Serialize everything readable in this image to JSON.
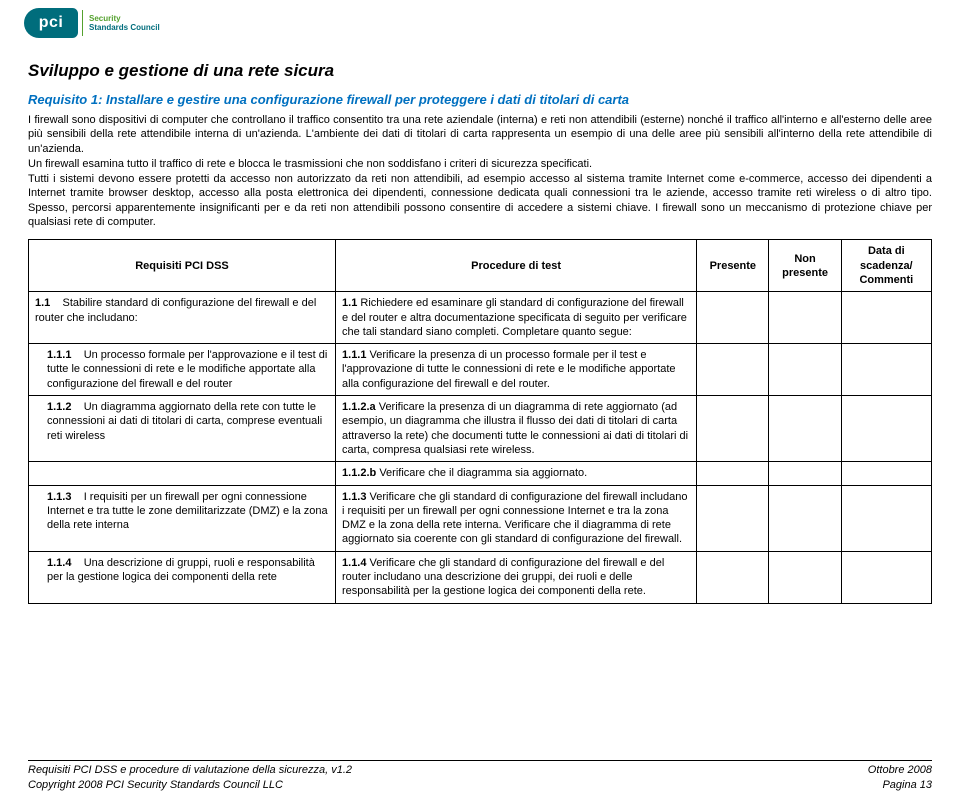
{
  "logo": {
    "abbr": "pci",
    "line1": "Security",
    "line2": "Standards Council"
  },
  "title": "Sviluppo e gestione di una rete sicura",
  "requirement_heading": "Requisito 1: Installare e gestire una configurazione firewall per proteggere i dati di titolari di carta",
  "para1": "I firewall sono dispositivi di computer che controllano il traffico consentito tra una rete aziendale (interna) e reti non attendibili (esterne) nonché il traffico all'interno e all'esterno delle aree più sensibili della rete attendibile interna di un'azienda. L'ambiente dei dati di titolari di carta rappresenta un esempio di una delle aree più sensibili all'interno della rete attendibile di un'azienda.",
  "para2": "Un firewall esamina tutto il traffico di rete e blocca le trasmissioni che non soddisfano i criteri di sicurezza specificati.",
  "para3": "Tutti i sistemi devono essere protetti da accesso non autorizzato da reti non attendibili, ad esempio accesso al sistema tramite Internet come e-commerce, accesso dei dipendenti a Internet tramite browser desktop, accesso alla posta elettronica dei dipendenti, connessione dedicata quali connessioni tra le aziende, accesso tramite reti wireless o di altro tipo. Spesso, percorsi apparentemente insignificanti per e da reti non attendibili possono consentire di accedere a sistemi chiave. I firewall sono un meccanismo di protezione chiave per qualsiasi rete di computer.",
  "table": {
    "headers": {
      "col1": "Requisiti PCI DSS",
      "col2": "Procedure di test",
      "col3": "Presente",
      "col4": "Non presente",
      "col5": "Data di scadenza/ Commenti"
    },
    "rows": [
      {
        "req_num": "1.1",
        "req_text": "Stabilire standard di configurazione del firewall e del router che includano:",
        "proc_num": "1.1",
        "proc_text": "Richiedere ed esaminare gli standard di configurazione del firewall e del router e altra documentazione specificata di seguito per verificare che tali standard siano completi. Completare quanto segue:"
      },
      {
        "req_num": "1.1.1",
        "req_text": "Un processo formale per l'approvazione e il test di tutte le connessioni di rete e le modifiche apportate alla configurazione del firewall e del router",
        "proc_num": "1.1.1",
        "proc_text": "Verificare la presenza di un processo formale per il test e l'approvazione di tutte le connessioni di rete e le modifiche apportate alla configurazione del firewall e del router.",
        "indent": true
      },
      {
        "req_num": "1.1.2",
        "req_text": "Un diagramma aggiornato della rete con tutte le connessioni ai dati di titolari di carta, comprese eventuali reti wireless",
        "proc_num": "1.1.2.a",
        "proc_text": "Verificare la presenza di un diagramma di rete aggiornato (ad esempio, un diagramma che illustra il flusso dei dati di titolari di carta attraverso la rete) che documenti tutte le connessioni ai dati di titolari di carta, compresa qualsiasi rete wireless.",
        "indent": true
      },
      {
        "req_num": "",
        "req_text": "",
        "proc_num": "1.1.2.b",
        "proc_text": "Verificare che il diagramma sia aggiornato.",
        "empty_req": true
      },
      {
        "req_num": "1.1.3",
        "req_text": "I requisiti per un firewall per ogni connessione Internet e tra tutte le zone demilitarizzate (DMZ) e la zona della rete interna",
        "proc_num": "1.1.3",
        "proc_text": "Verificare che gli standard di configurazione del firewall includano i requisiti per un firewall per ogni connessione Internet e tra la zona DMZ e la zona della rete interna. Verificare che il diagramma di rete aggiornato sia coerente con gli standard di configurazione del firewall.",
        "indent": true
      },
      {
        "req_num": "1.1.4",
        "req_text": "Una descrizione di gruppi, ruoli e responsabilità per la gestione logica dei componenti della rete",
        "proc_num": "1.1.4",
        "proc_text": "Verificare che gli standard di configurazione del firewall e del router includano una descrizione dei gruppi, dei ruoli e delle responsabilità per la gestione logica dei componenti della rete.",
        "indent": true
      }
    ]
  },
  "footer": {
    "left1": "Requisiti PCI DSS e procedure di valutazione della sicurezza, v1.2",
    "left2": "Copyright 2008 PCI Security Standards Council LLC",
    "right1": "Ottobre 2008",
    "right2": "Pagina 13"
  },
  "colors": {
    "heading_blue": "#0070c0",
    "logo_teal": "#006d7c",
    "logo_green": "#54a12e",
    "text": "#000000",
    "background": "#ffffff"
  }
}
